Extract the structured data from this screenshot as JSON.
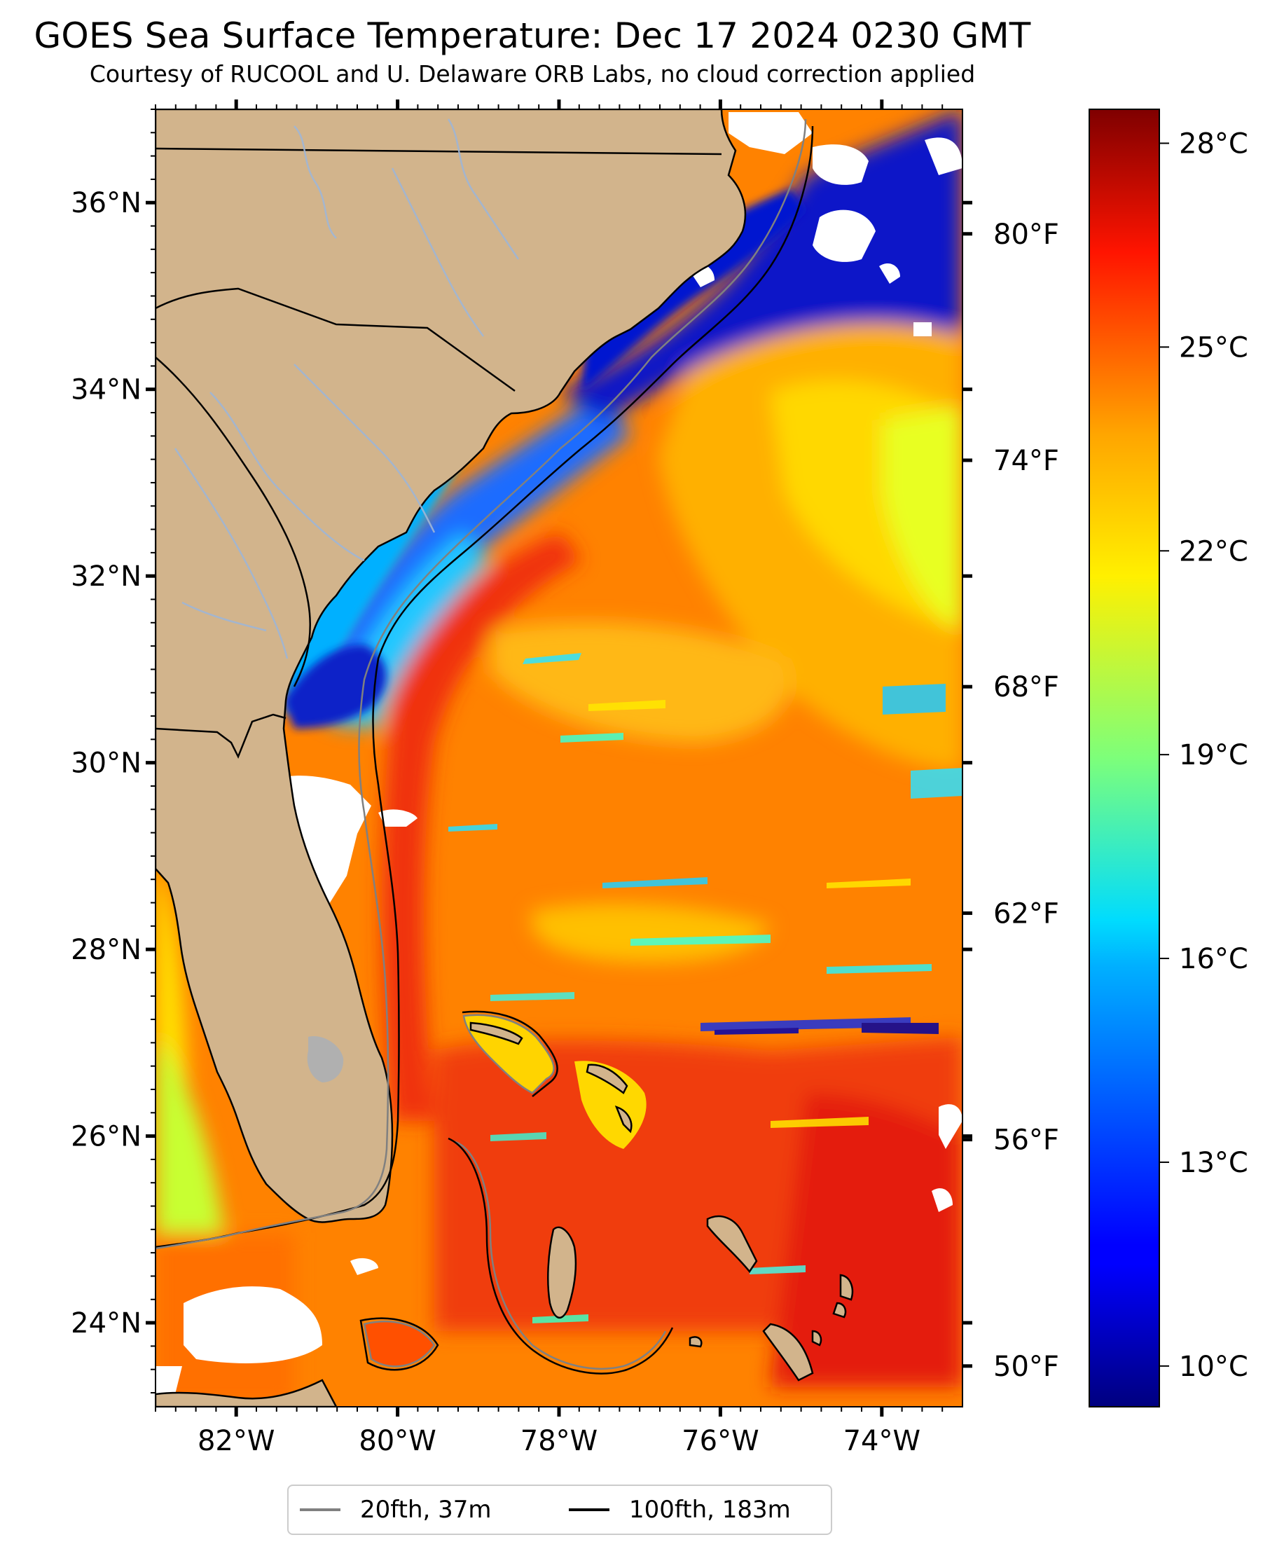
{
  "title": "GOES Sea Surface Temperature: Dec 17 2024 0230 GMT",
  "subtitle": "Courtesy of RUCOOL and U. Delaware ORB Labs, no cloud correction applied",
  "map": {
    "extent": {
      "lon_min": -83,
      "lon_max": -73,
      "lat_min": 23.1,
      "lat_max": 37
    },
    "lat_labels": [
      {
        "value": 36,
        "text": "36°N"
      },
      {
        "value": 34,
        "text": "34°N"
      },
      {
        "value": 32,
        "text": "32°N"
      },
      {
        "value": 30,
        "text": "30°N"
      },
      {
        "value": 28,
        "text": "28°N"
      },
      {
        "value": 26,
        "text": "26°N"
      },
      {
        "value": 24,
        "text": "24°N"
      }
    ],
    "lon_labels": [
      {
        "value": -82,
        "text": "82°W"
      },
      {
        "value": -80,
        "text": "80°W"
      },
      {
        "value": -78,
        "text": "78°W"
      },
      {
        "value": -76,
        "text": "76°W"
      },
      {
        "value": -74,
        "text": "74°W"
      }
    ],
    "fahrenheit_labels": [
      {
        "value": 80,
        "text": "80°F"
      },
      {
        "value": 74,
        "text": "74°F"
      },
      {
        "value": 68,
        "text": "68°F"
      },
      {
        "value": 62,
        "text": "62°F"
      },
      {
        "value": 56,
        "text": "56°F"
      },
      {
        "value": 50,
        "text": "50°F"
      }
    ],
    "colors": {
      "land": "#d2b48c",
      "ocean_warm": "#ff7a00",
      "ocean_gulf_stream": "#ef3a10",
      "shelf_cold": "#0b1fd8",
      "cloud": "#ffffff",
      "coastline": "#000000",
      "isobath_20": "#808080",
      "isobath_100": "#000000",
      "rivers": "#9fb6d6"
    }
  },
  "colorbar": {
    "vmin": 9.4,
    "vmax": 28.5,
    "ticks": [
      {
        "value": 28,
        "text": "28°C"
      },
      {
        "value": 25,
        "text": "25°C"
      },
      {
        "value": 22,
        "text": "22°C"
      },
      {
        "value": 19,
        "text": "19°C"
      },
      {
        "value": 16,
        "text": "16°C"
      },
      {
        "value": 13,
        "text": "13°C"
      },
      {
        "value": 10,
        "text": "10°C"
      }
    ],
    "colormap": "jet"
  },
  "legend": [
    {
      "label": "20fth, 37m",
      "color": "#808080"
    },
    {
      "label": "100fth, 183m",
      "color": "#000000"
    }
  ]
}
